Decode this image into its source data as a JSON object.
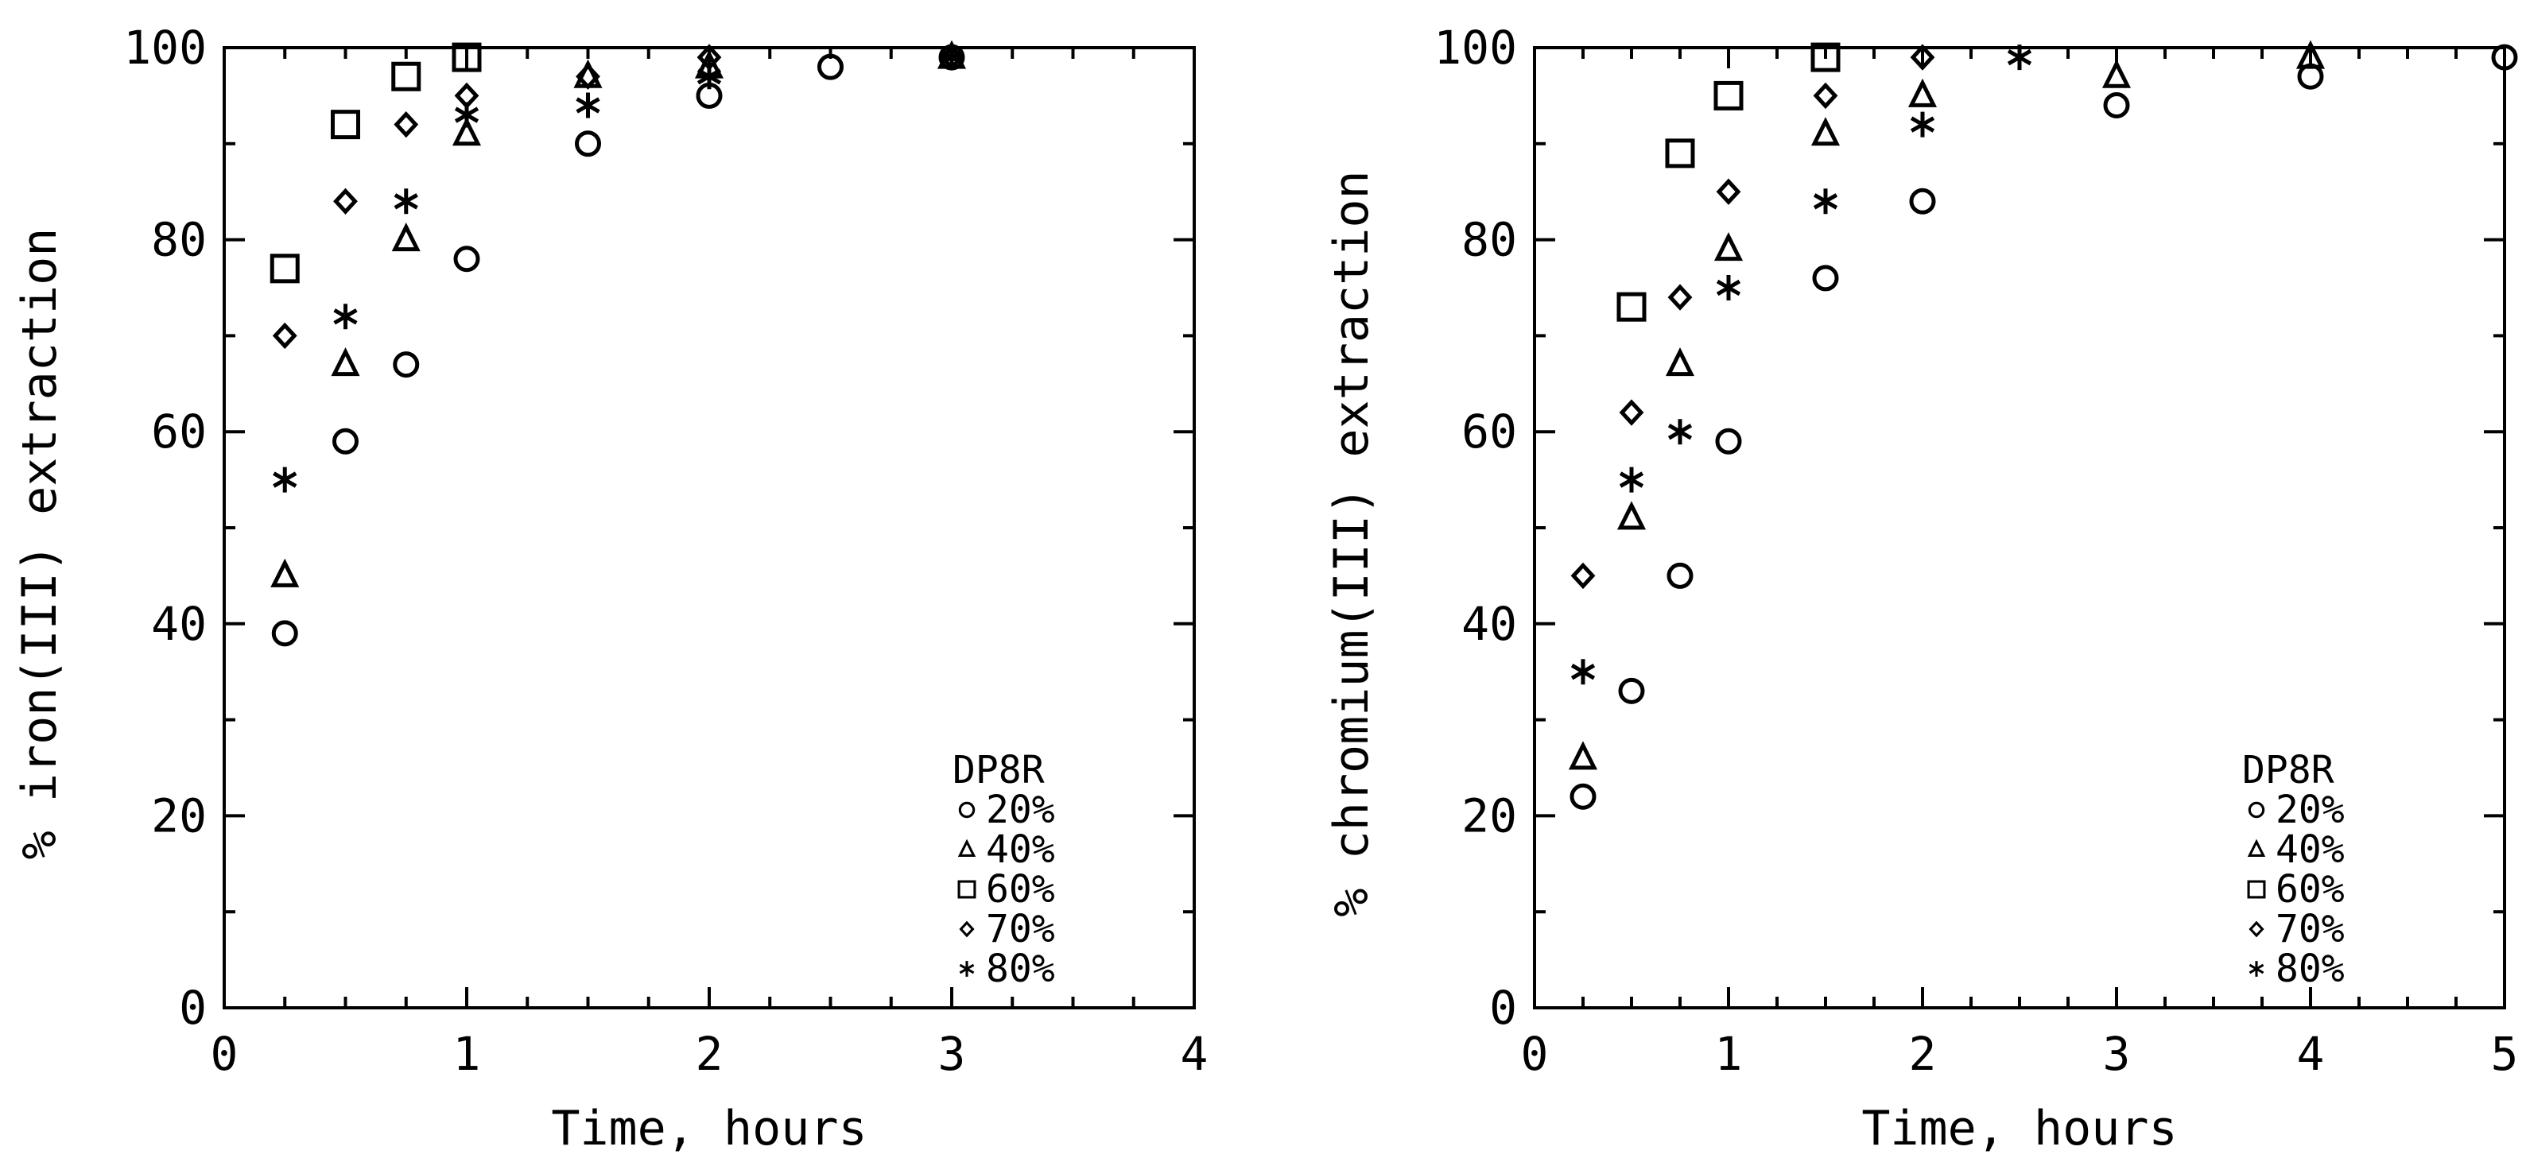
{
  "chart_data": [
    {
      "type": "scatter",
      "title": "",
      "xlabel": "Time, hours",
      "ylabel": "% iron(III) extraction",
      "xlim": [
        0,
        4
      ],
      "ylim": [
        0,
        100
      ],
      "xticks": [
        0,
        1,
        2,
        3,
        4
      ],
      "yticks": [
        0,
        20,
        40,
        60,
        80,
        100
      ],
      "grid": false,
      "legend_position": "bottom-right",
      "legend_title": "DP8R",
      "series": [
        {
          "name": "20%",
          "marker": "circle",
          "x": [
            0.25,
            0.5,
            0.75,
            1,
            1.5,
            2,
            2.5,
            3
          ],
          "y": [
            39,
            59,
            67,
            78,
            90,
            95,
            98,
            99
          ]
        },
        {
          "name": "40%",
          "marker": "triangle",
          "x": [
            0.25,
            0.5,
            0.75,
            1,
            1.5,
            2,
            3
          ],
          "y": [
            45,
            67,
            80,
            91,
            97,
            98,
            99
          ]
        },
        {
          "name": "60%",
          "marker": "square",
          "x": [
            0.25,
            0.5,
            0.75,
            1
          ],
          "y": [
            77,
            92,
            97,
            99
          ]
        },
        {
          "name": "70%",
          "marker": "diamond",
          "x": [
            0.25,
            0.5,
            0.75,
            1,
            1.5,
            2,
            3
          ],
          "y": [
            70,
            84,
            92,
            95,
            97,
            99,
            99
          ]
        },
        {
          "name": "80%",
          "marker": "star",
          "x": [
            0.25,
            0.5,
            0.75,
            1,
            1.5,
            2,
            3
          ],
          "y": [
            55,
            72,
            84,
            93,
            94,
            97,
            99
          ]
        }
      ]
    },
    {
      "type": "scatter",
      "title": "",
      "xlabel": "Time, hours",
      "ylabel": "% chromium(III) extraction",
      "xlim": [
        0,
        5
      ],
      "ylim": [
        0,
        100
      ],
      "xticks": [
        0,
        1,
        2,
        3,
        4,
        5
      ],
      "yticks": [
        0,
        20,
        40,
        60,
        80,
        100
      ],
      "grid": false,
      "legend_position": "bottom-right",
      "legend_title": "DP8R",
      "series": [
        {
          "name": "20%",
          "marker": "circle",
          "x": [
            0.25,
            0.5,
            0.75,
            1,
            1.5,
            2,
            3,
            4,
            5
          ],
          "y": [
            22,
            33,
            45,
            59,
            76,
            84,
            94,
            97,
            99
          ]
        },
        {
          "name": "40%",
          "marker": "triangle",
          "x": [
            0.25,
            0.5,
            0.75,
            1,
            1.5,
            2,
            3,
            4
          ],
          "y": [
            26,
            51,
            67,
            79,
            91,
            95,
            97,
            99
          ]
        },
        {
          "name": "60%",
          "marker": "square",
          "x": [
            0.5,
            0.75,
            1,
            1.5
          ],
          "y": [
            73,
            89,
            95,
            99
          ]
        },
        {
          "name": "70%",
          "marker": "diamond",
          "x": [
            0.25,
            0.5,
            0.75,
            1,
            1.5,
            2
          ],
          "y": [
            45,
            62,
            74,
            85,
            95,
            99
          ]
        },
        {
          "name": "80%",
          "marker": "star",
          "x": [
            0.25,
            0.5,
            0.75,
            1,
            1.5,
            2,
            2.5
          ],
          "y": [
            35,
            55,
            60,
            75,
            84,
            92,
            99
          ]
        }
      ]
    }
  ]
}
